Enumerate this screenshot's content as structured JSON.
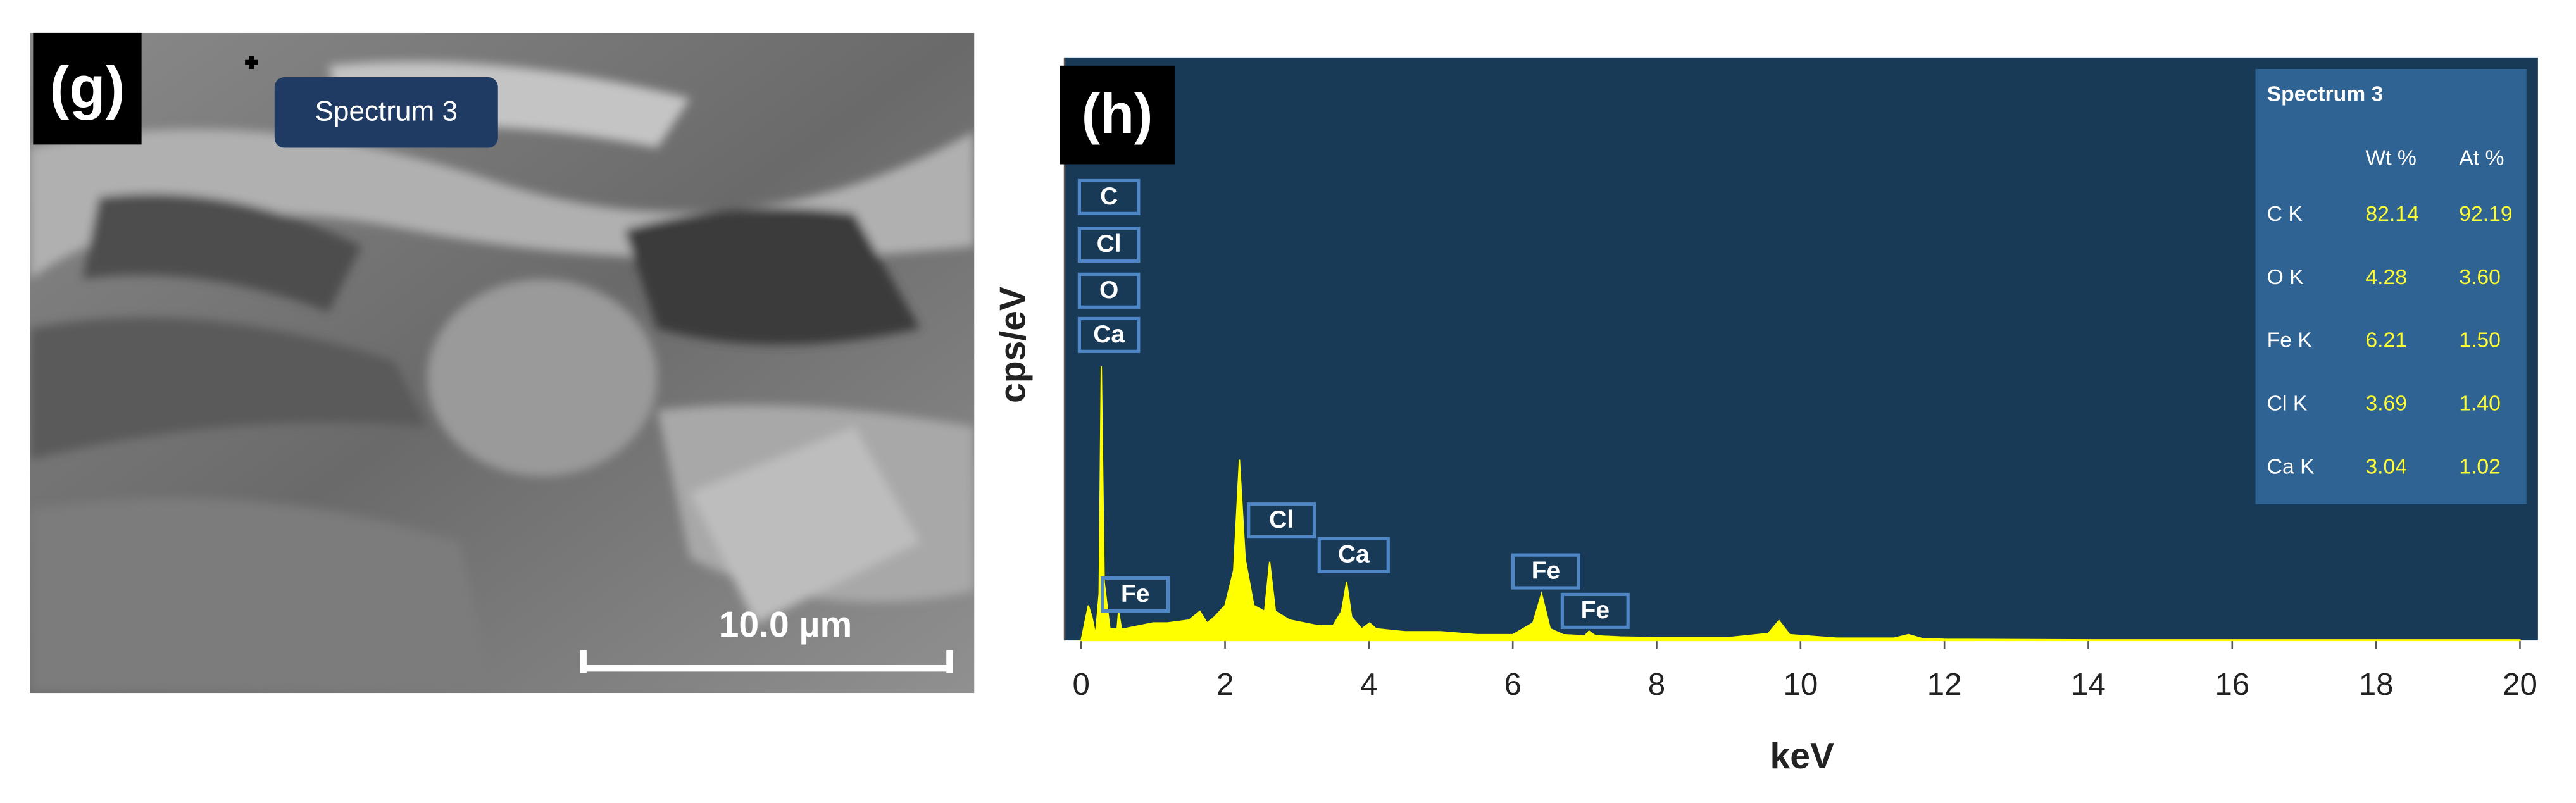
{
  "panel_g": {
    "label": "(g)",
    "marker_label": "Spectrum 3",
    "scale_label": "10.0 µm"
  },
  "chart_data": {
    "type": "area",
    "panel_label": "(h)",
    "x_label": "keV",
    "y_label": "cps/eV",
    "color": "#ffff00",
    "background": "#183a56",
    "x": [
      0,
      0.1,
      0.15,
      0.2,
      0.25,
      0.28,
      0.32,
      0.4,
      0.5,
      0.52,
      0.56,
      0.6,
      0.8,
      1.0,
      1.2,
      1.5,
      1.65,
      1.75,
      1.85,
      2.0,
      2.12,
      2.2,
      2.28,
      2.4,
      2.55,
      2.62,
      2.7,
      2.9,
      3.1,
      3.3,
      3.5,
      3.62,
      3.69,
      3.76,
      3.9,
      4.01,
      4.1,
      4.5,
      5.0,
      5.5,
      6.0,
      6.28,
      6.4,
      6.52,
      6.7,
      7.0,
      7.06,
      7.15,
      7.5,
      8.0,
      9.0,
      9.55,
      9.7,
      9.85,
      10.5,
      11.3,
      11.5,
      11.7,
      12.0,
      14.0,
      16.0,
      18.0,
      20.0
    ],
    "values": [
      0,
      6,
      4,
      1,
      8,
      47,
      10,
      2,
      2,
      5,
      2,
      2,
      2.5,
      3,
      3,
      3.5,
      5,
      3,
      4,
      6,
      12,
      31,
      14,
      6,
      5,
      13.5,
      5,
      3.5,
      3,
      2.5,
      2.5,
      5,
      10,
      4,
      2,
      3,
      2,
      1.5,
      1.5,
      1,
      1,
      3,
      8,
      2,
      1,
      0.8,
      1.6,
      0.8,
      0.6,
      0.5,
      0.5,
      1.2,
      3.4,
      1,
      0.4,
      0.4,
      1,
      0.3,
      0.2,
      0.1,
      0.1,
      0.1,
      0.1
    ],
    "xlim": [
      -0.23,
      20.25
    ],
    "ylim": [
      0,
      100
    ],
    "xticks": [
      0,
      2,
      4,
      6,
      8,
      10,
      12,
      14,
      16,
      18,
      20
    ],
    "peak_labels": [
      "C",
      "Cl",
      "O",
      "Ca",
      "Fe",
      "Cl",
      "Ca",
      "Fe",
      "Fe"
    ],
    "table": {
      "title": "Spectrum 3",
      "columns": [
        "Wt %",
        "At %"
      ],
      "rows": [
        [
          "C K",
          "82.14",
          "92.19"
        ],
        [
          "O K",
          "4.28",
          "3.60"
        ],
        [
          "Fe K",
          "6.21",
          "1.50"
        ],
        [
          "Cl K",
          "3.69",
          "1.40"
        ],
        [
          "Ca K",
          "3.04",
          "1.02"
        ]
      ]
    }
  }
}
